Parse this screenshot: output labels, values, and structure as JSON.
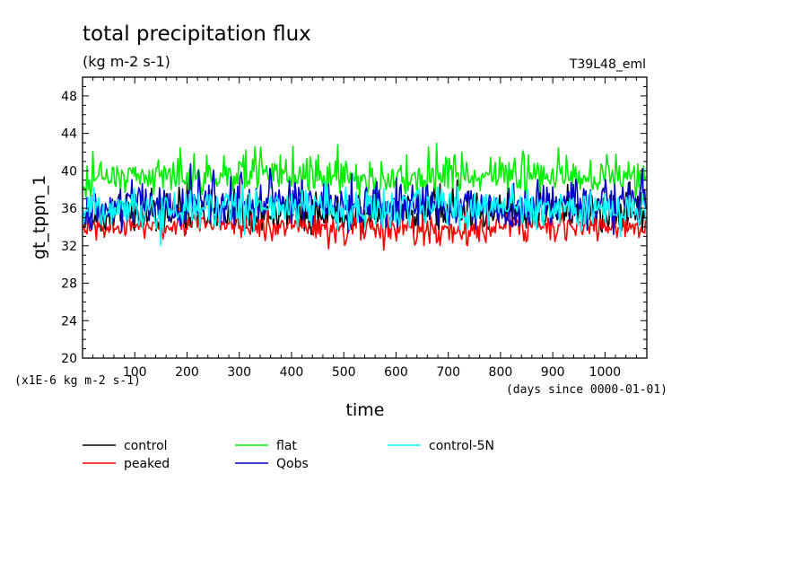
{
  "chart_data": {
    "type": "line",
    "title": "total precipitation flux",
    "units": "(kg m-2 s-1)",
    "run_label": "T39L48_eml",
    "ylabel": "gt_tppn_1",
    "xlabel": "time",
    "y_scale_note": "(x1E-6 kg m-2 s-1)",
    "x_units_note": "(days since 0000-01-01)",
    "xlim": [
      0,
      1080
    ],
    "ylim": [
      20,
      50
    ],
    "xticks": [
      100,
      200,
      300,
      400,
      500,
      600,
      700,
      800,
      900,
      1000
    ],
    "xtick_labels": [
      "100",
      "200",
      "300",
      "400",
      "500",
      "600",
      "700",
      "800",
      "900",
      "1000"
    ],
    "yticks": [
      20,
      24,
      28,
      32,
      36,
      40,
      44,
      48
    ],
    "ytick_labels": [
      "20",
      "24",
      "28",
      "32",
      "36",
      "40",
      "44",
      "48"
    ],
    "legend": "below",
    "series": [
      {
        "name": "control",
        "color": "#000000",
        "x": [
          0,
          40,
          80,
          120,
          160,
          200,
          240,
          280,
          320,
          360,
          400,
          440,
          480,
          520,
          560,
          600,
          640,
          680,
          720,
          760,
          800,
          840,
          880,
          920,
          960,
          1000,
          1040,
          1080
        ],
        "values": [
          35.0,
          35.2,
          35.3,
          35.1,
          35.4,
          35.6,
          35.4,
          35.2,
          35.5,
          35.3,
          35.4,
          35.8,
          35.1,
          35.0,
          35.3,
          35.4,
          35.6,
          35.8,
          35.9,
          35.6,
          35.4,
          35.5,
          35.6,
          35.3,
          35.4,
          35.5,
          35.6,
          35.4
        ],
        "low": [
          33.0,
          32.5,
          33.0,
          33.2,
          33.0,
          33.3,
          33.4,
          33.1,
          32.6,
          32.8,
          33.2,
          33.0,
          32.9,
          33.0,
          33.1,
          32.8,
          33.0,
          33.4,
          33.3,
          33.2,
          33.1,
          33.3,
          33.0,
          33.4,
          33.2,
          32.6,
          33.1,
          33.0
        ],
        "high": [
          37.2,
          37.8,
          38.0,
          38.2,
          38.3,
          39.2,
          38.4,
          38.6,
          38.3,
          38.4,
          38.2,
          39.0,
          38.1,
          38.6,
          38.3,
          38.5,
          38.8,
          39.2,
          39.4,
          38.8,
          38.6,
          38.9,
          39.1,
          38.5,
          38.7,
          38.8,
          38.9,
          38.6
        ]
      },
      {
        "name": "peaked",
        "color": "#ff0000",
        "x": [
          0,
          40,
          80,
          120,
          160,
          200,
          240,
          280,
          320,
          360,
          400,
          440,
          480,
          520,
          560,
          600,
          640,
          680,
          720,
          760,
          800,
          840,
          880,
          920,
          960,
          1000,
          1040,
          1080
        ],
        "values": [
          34.0,
          34.1,
          34.0,
          34.0,
          34.2,
          34.1,
          34.0,
          34.3,
          34.1,
          33.9,
          34.0,
          34.2,
          33.6,
          33.8,
          33.9,
          33.7,
          34.0,
          33.9,
          34.1,
          34.2,
          34.0,
          33.9,
          34.0,
          34.1,
          34.0,
          34.1,
          34.0,
          34.2
        ],
        "low": [
          32.8,
          32.2,
          32.6,
          32.7,
          32.6,
          33.0,
          32.8,
          32.9,
          32.6,
          32.3,
          32.5,
          32.4,
          30.5,
          31.2,
          31.0,
          30.6,
          31.5,
          31.0,
          31.6,
          32.0,
          32.1,
          31.4,
          31.8,
          32.2,
          32.0,
          32.3,
          32.4,
          32.6
        ],
        "high": [
          35.5,
          35.8,
          35.6,
          35.9,
          36.4,
          36.0,
          35.8,
          36.2,
          36.0,
          35.8,
          35.8,
          36.2,
          35.4,
          35.9,
          35.6,
          35.7,
          36.2,
          36.0,
          36.1,
          36.0,
          35.7,
          35.9,
          36.2,
          35.8,
          36.0,
          36.2,
          36.0,
          36.4
        ]
      },
      {
        "name": "flat",
        "color": "#00ee00",
        "x": [
          0,
          40,
          80,
          120,
          160,
          200,
          240,
          280,
          320,
          360,
          400,
          440,
          480,
          520,
          560,
          600,
          640,
          680,
          720,
          760,
          800,
          840,
          880,
          920,
          960,
          1000,
          1040,
          1080
        ],
        "values": [
          39.0,
          39.2,
          39.4,
          39.0,
          39.3,
          39.6,
          39.1,
          39.0,
          39.5,
          39.2,
          39.1,
          39.4,
          39.6,
          39.2,
          39.0,
          39.3,
          39.1,
          39.2,
          39.4,
          39.5,
          39.3,
          39.2,
          39.4,
          39.1,
          39.0,
          39.2,
          39.3,
          39.1
        ],
        "low": [
          36.5,
          37.0,
          37.2,
          37.4,
          37.3,
          37.0,
          37.6,
          37.4,
          36.8,
          37.5,
          37.2,
          36.9,
          37.4,
          37.1,
          37.0,
          37.3,
          36.8,
          37.2,
          37.0,
          37.5,
          37.3,
          37.4,
          36.9,
          37.2,
          37.4,
          37.0,
          37.3,
          37.1
        ],
        "high": [
          43.2,
          42.5,
          41.6,
          41.4,
          41.8,
          43.2,
          42.4,
          41.6,
          44.2,
          42.0,
          42.6,
          43.2,
          44.5,
          42.2,
          41.8,
          42.4,
          42.0,
          43.0,
          42.6,
          43.0,
          42.2,
          42.6,
          43.6,
          42.4,
          41.8,
          42.4,
          42.2,
          41.6
        ]
      },
      {
        "name": "Qobs",
        "color": "#0000cc",
        "x": [
          0,
          40,
          80,
          120,
          160,
          200,
          240,
          280,
          320,
          360,
          400,
          440,
          480,
          520,
          560,
          600,
          640,
          680,
          720,
          760,
          800,
          840,
          880,
          920,
          960,
          1000,
          1040,
          1080
        ],
        "values": [
          35.4,
          35.8,
          36.1,
          36.6,
          36.9,
          36.7,
          37.0,
          36.4,
          36.2,
          36.5,
          36.3,
          36.7,
          36.2,
          36.4,
          36.3,
          36.0,
          36.5,
          36.2,
          36.0,
          36.4,
          36.1,
          36.2,
          36.4,
          36.6,
          36.8,
          36.9,
          36.6,
          36.4
        ],
        "low": [
          33.0,
          31.5,
          33.0,
          33.3,
          33.6,
          33.2,
          33.5,
          33.3,
          33.0,
          33.2,
          33.4,
          33.1,
          33.2,
          33.0,
          33.4,
          33.2,
          33.1,
          33.3,
          33.0,
          33.5,
          33.1,
          33.2,
          33.3,
          33.4,
          33.2,
          33.0,
          33.4,
          33.2
        ],
        "high": [
          38.8,
          38.5,
          39.4,
          40.0,
          40.2,
          40.6,
          41.5,
          41.0,
          40.0,
          40.5,
          40.0,
          40.6,
          40.1,
          40.6,
          39.8,
          39.6,
          40.0,
          39.5,
          39.4,
          39.8,
          39.2,
          39.6,
          40.0,
          40.2,
          40.6,
          40.8,
          40.4,
          40.2
        ]
      },
      {
        "name": "control-5N",
        "color": "#00ffff",
        "x": [
          0,
          40,
          80,
          120,
          160,
          200,
          240,
          280,
          320,
          360,
          400,
          440,
          480,
          520,
          560,
          600,
          640,
          680,
          720,
          760,
          800,
          840,
          880,
          920,
          960,
          1000,
          1040,
          1080
        ],
        "values": [
          36.0,
          35.8,
          35.9,
          36.1,
          35.7,
          36.0,
          36.2,
          35.9,
          36.0,
          36.1,
          35.8,
          36.2,
          36.0,
          35.9,
          36.1,
          35.9,
          36.0,
          36.1,
          35.8,
          36.0,
          36.2,
          35.9,
          36.0,
          36.1,
          35.8,
          36.0,
          35.9,
          36.0
        ],
        "low": [
          33.8,
          33.4,
          33.0,
          33.4,
          31.6,
          33.4,
          33.6,
          33.0,
          32.4,
          33.2,
          33.4,
          33.5,
          33.2,
          33.0,
          33.4,
          33.2,
          33.6,
          33.4,
          33.0,
          33.2,
          33.4,
          33.6,
          33.2,
          33.0,
          33.4,
          33.2,
          32.4,
          33.0
        ],
        "high": [
          38.4,
          38.6,
          38.0,
          38.5,
          38.2,
          39.6,
          38.8,
          38.4,
          39.0,
          38.8,
          38.6,
          39.2,
          39.0,
          38.6,
          38.8,
          38.9,
          38.4,
          39.2,
          38.6,
          38.8,
          38.4,
          38.9,
          38.7,
          38.4,
          38.8,
          39.0,
          38.4,
          38.6
        ]
      }
    ]
  }
}
